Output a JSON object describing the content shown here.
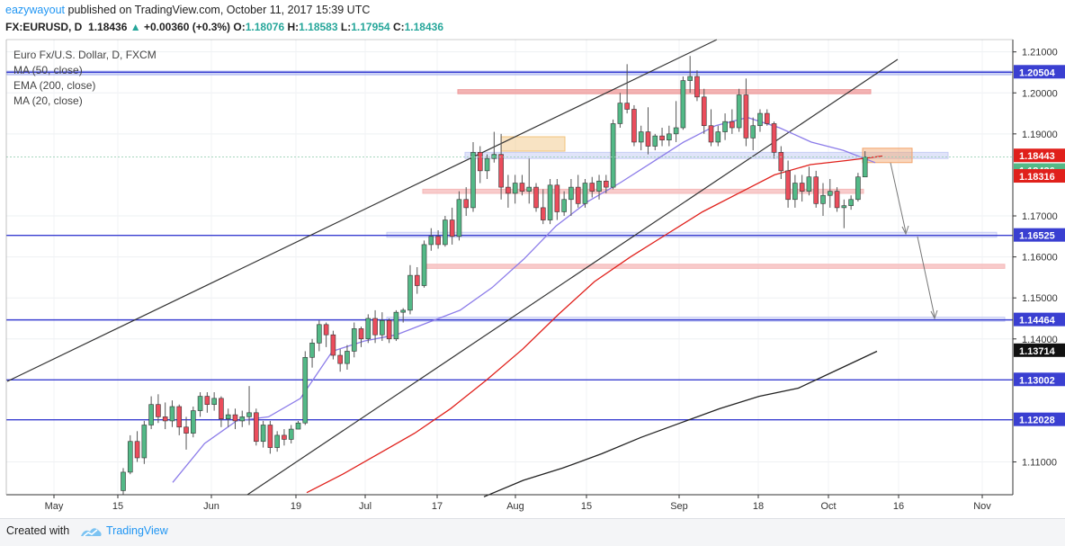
{
  "header": {
    "author": "eazywayout",
    "published_text": "published on TradingView.com, October 11, 2017 15:39 UTC",
    "symbol": "FX:EURUSD, D",
    "last": "1.18436",
    "change": "+0.00360 (+0.3%)",
    "o_label": "O:",
    "o_value": "1.18076",
    "h_label": "H:",
    "h_value": "1.18583",
    "l_label": "L:",
    "l_value": "1.17954",
    "c_label": "C:",
    "c_value": "1.18436"
  },
  "legend": {
    "title": "Euro Fx/U.S. Dollar, D, FXCM",
    "ma50": "MA (50, close)",
    "ema200": "EMA (200, close)",
    "ma20": "MA (20, close)"
  },
  "footer": {
    "created_with": "Created with",
    "brand": "TradingView"
  },
  "colors": {
    "up": "#26a69a",
    "candle_up": "#53b987",
    "candle_down": "#eb4d5c",
    "ma50": "#222222",
    "ema200": "#e0201b",
    "ma20": "#8c7ce9",
    "support_line": "#3a3fd1",
    "zone_blue": "#aab4f0",
    "zone_red": "#ef9a9a",
    "zone_orange": "#f0c27a"
  },
  "chart_data": {
    "type": "candlestick",
    "ylim": [
      1.102,
      1.213
    ],
    "price_ticks": [
      "1.21000",
      "1.20000",
      "1.19000",
      "1.17000",
      "1.16000",
      "1.15000",
      "1.14000",
      "1.11000"
    ],
    "x_ticks": [
      "May",
      "15",
      "Jun",
      "19",
      "Jul",
      "17",
      "Aug",
      "15",
      "Sep",
      "18",
      "Oct",
      "16",
      "Nov"
    ],
    "price_labels": [
      {
        "value": 1.20504,
        "label": "1.20504",
        "color": "#3a3fd1"
      },
      {
        "value": 1.18443,
        "label": "1.18443",
        "color": "#e0201b"
      },
      {
        "value": 1.18436,
        "label": "1.18436",
        "color": "#53b987"
      },
      {
        "value": 1.18316,
        "label": "1.18316",
        "color": "#e0201b"
      },
      {
        "value": 1.16525,
        "label": "1.16525",
        "color": "#3a3fd1"
      },
      {
        "value": 1.14464,
        "label": "1.14464",
        "color": "#3a3fd1"
      },
      {
        "value": 1.13714,
        "label": "1.13714",
        "color": "#111111"
      },
      {
        "value": 1.13002,
        "label": "1.13002",
        "color": "#3a3fd1"
      },
      {
        "value": 1.12028,
        "label": "1.12028",
        "color": "#3a3fd1"
      }
    ],
    "horizontal_lines": [
      1.20504,
      1.16525,
      1.14464,
      1.13002,
      1.12028
    ],
    "candles": [
      [
        1.103,
        1.1085,
        1.102,
        1.1075
      ],
      [
        1.1075,
        1.1165,
        1.107,
        1.115
      ],
      [
        1.115,
        1.1175,
        1.11,
        1.111
      ],
      [
        1.111,
        1.12,
        1.1095,
        1.119
      ],
      [
        1.119,
        1.126,
        1.118,
        1.124
      ],
      [
        1.124,
        1.1265,
        1.1195,
        1.121
      ],
      [
        1.121,
        1.1245,
        1.118,
        1.12
      ],
      [
        1.12,
        1.125,
        1.1185,
        1.1235
      ],
      [
        1.1235,
        1.124,
        1.1165,
        1.1185
      ],
      [
        1.1185,
        1.121,
        1.113,
        1.117
      ],
      [
        1.117,
        1.1235,
        1.116,
        1.1225
      ],
      [
        1.1225,
        1.127,
        1.121,
        1.126
      ],
      [
        1.126,
        1.127,
        1.122,
        1.124
      ],
      [
        1.124,
        1.127,
        1.1225,
        1.1255
      ],
      [
        1.1255,
        1.126,
        1.1185,
        1.1205
      ],
      [
        1.1205,
        1.123,
        1.1185,
        1.1215
      ],
      [
        1.1215,
        1.123,
        1.118,
        1.12
      ],
      [
        1.12,
        1.1225,
        1.1185,
        1.121
      ],
      [
        1.121,
        1.1285,
        1.119,
        1.122
      ],
      [
        1.122,
        1.123,
        1.114,
        1.115
      ],
      [
        1.115,
        1.12,
        1.1135,
        1.119
      ],
      [
        1.119,
        1.12,
        1.112,
        1.1135
      ],
      [
        1.1135,
        1.1175,
        1.1125,
        1.1165
      ],
      [
        1.1165,
        1.118,
        1.114,
        1.1155
      ],
      [
        1.1155,
        1.119,
        1.1145,
        1.118
      ],
      [
        1.118,
        1.12,
        1.118,
        1.1195
      ],
      [
        1.1195,
        1.137,
        1.119,
        1.1355
      ],
      [
        1.1355,
        1.14,
        1.133,
        1.139
      ],
      [
        1.139,
        1.1445,
        1.137,
        1.1435
      ],
      [
        1.1435,
        1.144,
        1.138,
        1.141
      ],
      [
        1.141,
        1.142,
        1.135,
        1.136
      ],
      [
        1.136,
        1.1375,
        1.132,
        1.134
      ],
      [
        1.134,
        1.1385,
        1.1325,
        1.137
      ],
      [
        1.137,
        1.144,
        1.1355,
        1.1425
      ],
      [
        1.1425,
        1.143,
        1.138,
        1.14
      ],
      [
        1.14,
        1.146,
        1.139,
        1.145
      ],
      [
        1.145,
        1.147,
        1.139,
        1.141
      ],
      [
        1.141,
        1.1465,
        1.1395,
        1.1445
      ],
      [
        1.1445,
        1.145,
        1.139,
        1.14
      ],
      [
        1.14,
        1.147,
        1.1395,
        1.1465
      ],
      [
        1.1465,
        1.1475,
        1.144,
        1.147
      ],
      [
        1.147,
        1.158,
        1.146,
        1.1555
      ],
      [
        1.1555,
        1.1575,
        1.151,
        1.153
      ],
      [
        1.153,
        1.164,
        1.1525,
        1.163
      ],
      [
        1.163,
        1.167,
        1.1615,
        1.165
      ],
      [
        1.165,
        1.1665,
        1.162,
        1.163
      ],
      [
        1.163,
        1.17,
        1.1625,
        1.169
      ],
      [
        1.169,
        1.172,
        1.163,
        1.165
      ],
      [
        1.165,
        1.176,
        1.164,
        1.174
      ],
      [
        1.174,
        1.177,
        1.17,
        1.172
      ],
      [
        1.172,
        1.188,
        1.171,
        1.1855
      ],
      [
        1.1855,
        1.187,
        1.178,
        1.181
      ],
      [
        1.181,
        1.185,
        1.179,
        1.184
      ],
      [
        1.184,
        1.1905,
        1.183,
        1.185
      ],
      [
        1.185,
        1.19,
        1.174,
        1.177
      ],
      [
        1.177,
        1.18,
        1.172,
        1.1755
      ],
      [
        1.1755,
        1.18,
        1.173,
        1.178
      ],
      [
        1.178,
        1.18,
        1.175,
        1.176
      ],
      [
        1.176,
        1.184,
        1.173,
        1.177
      ],
      [
        1.177,
        1.178,
        1.171,
        1.172
      ],
      [
        1.172,
        1.1765,
        1.168,
        1.169
      ],
      [
        1.169,
        1.179,
        1.168,
        1.1775
      ],
      [
        1.1775,
        1.179,
        1.169,
        1.171
      ],
      [
        1.171,
        1.176,
        1.17,
        1.174
      ],
      [
        1.174,
        1.179,
        1.17,
        1.177
      ],
      [
        1.177,
        1.18,
        1.172,
        1.173
      ],
      [
        1.173,
        1.179,
        1.172,
        1.178
      ],
      [
        1.178,
        1.1795,
        1.1745,
        1.176
      ],
      [
        1.176,
        1.18,
        1.174,
        1.1785
      ],
      [
        1.1785,
        1.18,
        1.1755,
        1.177
      ],
      [
        1.177,
        1.1935,
        1.1765,
        1.1925
      ],
      [
        1.1925,
        1.2,
        1.1915,
        1.1975
      ],
      [
        1.1975,
        1.207,
        1.195,
        1.196
      ],
      [
        1.196,
        1.197,
        1.187,
        1.188
      ],
      [
        1.188,
        1.192,
        1.186,
        1.1905
      ],
      [
        1.1905,
        1.1965,
        1.185,
        1.187
      ],
      [
        1.187,
        1.19,
        1.186,
        1.1895
      ],
      [
        1.1895,
        1.1915,
        1.187,
        1.1885
      ],
      [
        1.1885,
        1.192,
        1.187,
        1.19
      ],
      [
        1.19,
        1.198,
        1.188,
        1.1915
      ],
      [
        1.1915,
        1.204,
        1.191,
        1.203
      ],
      [
        1.203,
        1.209,
        1.2,
        1.204
      ],
      [
        1.204,
        1.2055,
        1.198,
        1.199
      ],
      [
        1.199,
        1.201,
        1.19,
        1.192
      ],
      [
        1.192,
        1.196,
        1.187,
        1.188
      ],
      [
        1.188,
        1.192,
        1.187,
        1.1905
      ],
      [
        1.1905,
        1.195,
        1.1885,
        1.193
      ],
      [
        1.193,
        1.196,
        1.19,
        1.1915
      ],
      [
        1.1915,
        1.201,
        1.1905,
        1.1995
      ],
      [
        1.1995,
        1.2035,
        1.187,
        1.189
      ],
      [
        1.189,
        1.194,
        1.186,
        1.192
      ],
      [
        1.192,
        1.196,
        1.1905,
        1.195
      ],
      [
        1.195,
        1.196,
        1.192,
        1.1925
      ],
      [
        1.1925,
        1.193,
        1.184,
        1.1855
      ],
      [
        1.1855,
        1.187,
        1.179,
        1.181
      ],
      [
        1.181,
        1.1835,
        1.172,
        1.174
      ],
      [
        1.174,
        1.18,
        1.172,
        1.178
      ],
      [
        1.178,
        1.18,
        1.1735,
        1.176
      ],
      [
        1.176,
        1.182,
        1.175,
        1.1795
      ],
      [
        1.1795,
        1.181,
        1.172,
        1.173
      ],
      [
        1.173,
        1.178,
        1.17,
        1.175
      ],
      [
        1.175,
        1.179,
        1.172,
        1.176
      ],
      [
        1.176,
        1.177,
        1.171,
        1.172
      ],
      [
        1.172,
        1.174,
        1.167,
        1.1725
      ],
      [
        1.1725,
        1.175,
        1.1715,
        1.174
      ],
      [
        1.174,
        1.1805,
        1.1735,
        1.1795
      ],
      [
        1.1795,
        1.1858,
        1.1795,
        1.1844
      ]
    ],
    "ma20": [
      [
        1.104,
        1.105
      ],
      [
        1.112,
        1.1145
      ],
      [
        1.1165,
        1.12
      ],
      [
        1.1205,
        1.121
      ],
      [
        1.1275,
        1.1255
      ],
      [
        1.137,
        1.137
      ],
      [
        1.143,
        1.1395
      ],
      [
        1.145,
        1.141
      ],
      [
        1.1465,
        1.144
      ],
      [
        1.148,
        1.147
      ],
      [
        1.15,
        1.1525
      ],
      [
        1.1525,
        1.1595
      ],
      [
        1.1565,
        1.1675
      ],
      [
        1.162,
        1.1735
      ],
      [
        1.176,
        1.178
      ],
      [
        1.187,
        1.183
      ],
      [
        1.196,
        1.188
      ],
      [
        1.203,
        1.192
      ],
      [
        1.207,
        1.194
      ],
      [
        1.2085,
        1.1915
      ],
      [
        1.21,
        1.188
      ],
      [
        1.2125,
        1.186
      ],
      [
        1.214,
        1.183
      ]
    ],
    "ema200": [
      [
        1.1425,
        1.1025
      ],
      [
        1.148,
        1.107
      ],
      [
        1.152,
        1.112
      ],
      [
        1.1575,
        1.117
      ],
      [
        1.1625,
        1.123
      ],
      [
        1.1705,
        1.13
      ],
      [
        1.176,
        1.1375
      ],
      [
        1.183,
        1.146
      ],
      [
        1.19,
        1.154
      ],
      [
        1.196,
        1.16
      ],
      [
        1.201,
        1.1655
      ],
      [
        1.207,
        1.171
      ],
      [
        1.212,
        1.1755
      ],
      [
        1.2175,
        1.18
      ],
      [
        1.223,
        1.1825
      ],
      [
        1.228,
        1.1835
      ],
      [
        1.231,
        1.1846
      ]
    ],
    "ma50": [
      [
        1.1525,
        1.1015
      ],
      [
        1.1625,
        1.1055
      ],
      [
        1.17,
        1.1085
      ],
      [
        1.1775,
        1.112
      ],
      [
        1.185,
        1.116
      ],
      [
        1.1925,
        1.1195
      ],
      [
        1.2,
        1.123
      ],
      [
        1.208,
        1.126
      ],
      [
        1.216,
        1.128
      ],
      [
        1.225,
        1.1325
      ],
      [
        1.231,
        1.137
      ]
    ],
    "zones": [
      {
        "from": 1.2053,
        "to": 1.2045,
        "color": "#aab4f0",
        "opacity": 0.55
      },
      {
        "from": 1.2008,
        "to": 1.1998,
        "color": "#ef9a9a",
        "opacity": 0.75
      },
      {
        "from": 1.1855,
        "to": 1.184,
        "color": "#c7cdf4",
        "opacity": 0.55
      },
      {
        "from": 1.1765,
        "to": 1.1755,
        "color": "#f5b9b9",
        "opacity": 0.75
      },
      {
        "from": 1.166,
        "to": 1.1648,
        "color": "#c7cdf4",
        "opacity": 0.45
      },
      {
        "from": 1.1582,
        "to": 1.1572,
        "color": "#f5b9b9",
        "opacity": 0.75
      },
      {
        "from": 1.1453,
        "to": 1.1443,
        "color": "#c7cdf4",
        "opacity": 0.45
      }
    ],
    "boxes": [
      {
        "price_top": 1.1893,
        "price_bottom": 1.1858,
        "color": "#f0c27a"
      },
      {
        "price_top": 1.1865,
        "price_bottom": 1.183,
        "color": "#f2a36b"
      }
    ]
  }
}
